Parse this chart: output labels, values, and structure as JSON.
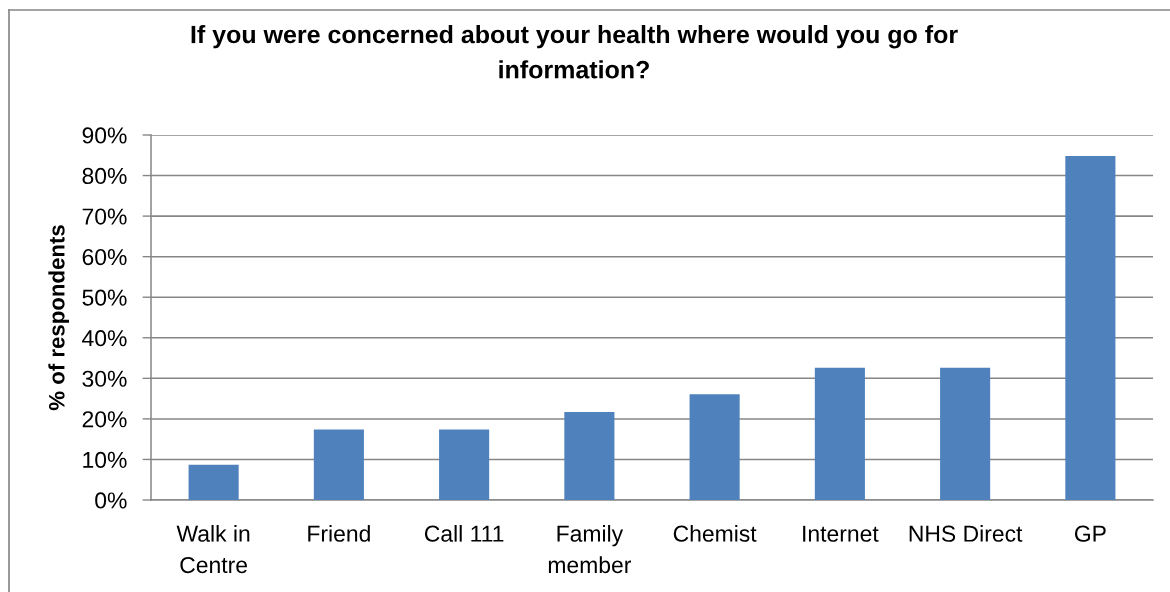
{
  "chart_data": {
    "type": "bar",
    "title": "If you were concerned about your health where would you go for information?",
    "ylabel": "% of respondents",
    "categories": [
      "Walk in Centre",
      "Friend",
      "Call 111",
      "Family member",
      "Chemist",
      "Internet",
      "NHS Direct",
      "GP"
    ],
    "values": [
      8.7,
      17.4,
      17.4,
      21.7,
      26.1,
      32.6,
      32.6,
      84.8
    ],
    "color": "#4f81bd",
    "ylim": [
      0,
      90
    ],
    "yticks": [
      {
        "value": 0,
        "label": "0%"
      },
      {
        "value": 10,
        "label": "10%"
      },
      {
        "value": 20,
        "label": "20%"
      },
      {
        "value": 30,
        "label": "30%"
      },
      {
        "value": 40,
        "label": "40%"
      },
      {
        "value": 50,
        "label": "50%"
      },
      {
        "value": 60,
        "label": "60%"
      },
      {
        "value": 70,
        "label": "70%"
      },
      {
        "value": 80,
        "label": "80%"
      },
      {
        "value": 90,
        "label": "90%"
      }
    ],
    "grid": "y"
  }
}
